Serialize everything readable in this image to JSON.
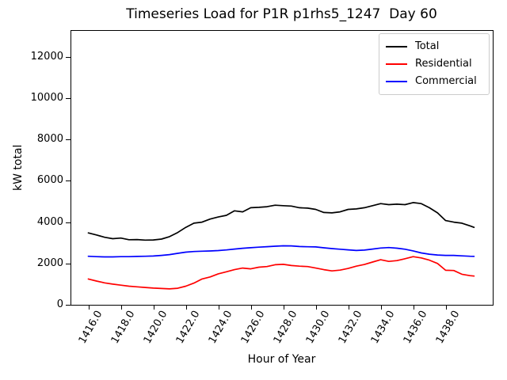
{
  "chart_data": {
    "type": "line",
    "title": "Timeseries Load for P1R p1rhs5_1247  Day 60",
    "xlabel": "Hour of Year",
    "ylabel": "kW total",
    "xlim": [
      1414.9,
      1440.9
    ],
    "ylim": [
      0,
      13300
    ],
    "grid": false,
    "legend_position": "upper right",
    "x_ticks": {
      "values": [
        1416,
        1418,
        1420,
        1422,
        1424,
        1426,
        1428,
        1430,
        1432,
        1434,
        1436,
        1438
      ],
      "labels": [
        "1416.0",
        "1418.0",
        "1420.0",
        "1422.0",
        "1424.0",
        "1426.0",
        "1428.0",
        "1430.0",
        "1432.0",
        "1434.0",
        "1436.0",
        "1438.0"
      ]
    },
    "y_ticks": {
      "values": [
        0,
        2000,
        4000,
        6000,
        8000,
        10000,
        12000
      ],
      "labels": [
        "0",
        "2000",
        "4000",
        "6000",
        "8000",
        "10000",
        "12000"
      ]
    },
    "x": [
      1416.0,
      1416.5,
      1417.0,
      1417.5,
      1418.0,
      1418.5,
      1419.0,
      1419.5,
      1420.0,
      1420.5,
      1421.0,
      1421.5,
      1422.0,
      1422.5,
      1423.0,
      1423.5,
      1424.0,
      1424.5,
      1425.0,
      1425.5,
      1426.0,
      1426.5,
      1427.0,
      1427.5,
      1428.0,
      1428.5,
      1429.0,
      1429.5,
      1430.0,
      1430.5,
      1431.0,
      1431.5,
      1432.0,
      1432.5,
      1433.0,
      1433.5,
      1434.0,
      1434.5,
      1435.0,
      1435.5,
      1436.0,
      1436.5,
      1437.0,
      1437.5,
      1438.0,
      1438.5,
      1439.0,
      1439.5,
      1439.75
    ],
    "series": [
      {
        "name": "Total",
        "color": "#000000",
        "values": [
          3480,
          3380,
          3270,
          3200,
          3230,
          3150,
          3160,
          3130,
          3140,
          3180,
          3300,
          3500,
          3750,
          3950,
          4000,
          4150,
          4250,
          4330,
          4550,
          4500,
          4700,
          4720,
          4750,
          4820,
          4800,
          4780,
          4700,
          4680,
          4620,
          4470,
          4450,
          4500,
          4620,
          4640,
          4700,
          4800,
          4900,
          4850,
          4870,
          4850,
          4950,
          4900,
          4700,
          4450,
          4080,
          4000,
          3950,
          3820,
          3750
        ]
      },
      {
        "name": "Residential",
        "color": "#ff0000",
        "values": [
          1250,
          1150,
          1060,
          1000,
          950,
          900,
          870,
          840,
          810,
          790,
          770,
          800,
          900,
          1050,
          1250,
          1350,
          1500,
          1600,
          1700,
          1780,
          1740,
          1820,
          1850,
          1940,
          1960,
          1900,
          1870,
          1850,
          1780,
          1700,
          1640,
          1680,
          1760,
          1870,
          1950,
          2070,
          2180,
          2100,
          2140,
          2230,
          2330,
          2270,
          2160,
          2000,
          1670,
          1660,
          1480,
          1410,
          1390
        ]
      },
      {
        "name": "Commercial",
        "color": "#0000ff",
        "values": [
          2350,
          2330,
          2320,
          2320,
          2330,
          2330,
          2340,
          2350,
          2360,
          2390,
          2430,
          2490,
          2550,
          2580,
          2595,
          2605,
          2625,
          2655,
          2700,
          2735,
          2765,
          2790,
          2815,
          2835,
          2855,
          2850,
          2820,
          2810,
          2800,
          2760,
          2720,
          2690,
          2660,
          2630,
          2650,
          2700,
          2750,
          2770,
          2740,
          2690,
          2610,
          2510,
          2450,
          2410,
          2390,
          2390,
          2370,
          2350,
          2345
        ]
      }
    ]
  },
  "colors": {
    "background": "#ffffff",
    "spine": "#000000",
    "legend_border": "#cccccc"
  }
}
